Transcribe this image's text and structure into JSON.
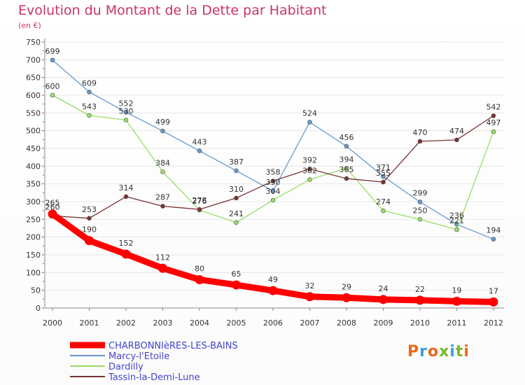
{
  "title": "Evolution du Montant de la Dette par Habitant",
  "subtitle": "(en €)",
  "logo": {
    "text": "Proxiti",
    "colors": [
      "#e86a1c",
      "#3aa0d8",
      "#e86a1c",
      "#7ab929",
      "#3aa0d8",
      "#7ab929",
      "#e86a1c"
    ]
  },
  "chart_data": {
    "type": "line",
    "x": [
      "2000",
      "2001",
      "2002",
      "2003",
      "2004",
      "2005",
      "2006",
      "2007",
      "2008",
      "2009",
      "2010",
      "2011",
      "2012"
    ],
    "ylim": [
      0,
      750
    ],
    "yticks": [
      0,
      50,
      100,
      150,
      200,
      250,
      300,
      350,
      400,
      450,
      500,
      550,
      600,
      650,
      700,
      750
    ],
    "grid": "horizontal",
    "legend": "bottom-left",
    "series": [
      {
        "name": "CHARBONNIèRES-LES-BAINS",
        "color": "#ff0000",
        "values": [
          265,
          190,
          152,
          112,
          80,
          65,
          49,
          32,
          29,
          24,
          22,
          19,
          17
        ]
      },
      {
        "name": "Marcy-l'Etoile",
        "color": "#6699cc",
        "values": [
          699,
          609,
          552,
          499,
          443,
          387,
          330,
          524,
          456,
          371,
          299,
          236,
          194
        ]
      },
      {
        "name": "Dardilly",
        "color": "#99dd66",
        "values": [
          600,
          543,
          530,
          384,
          276,
          241,
          304,
          362,
          394,
          274,
          250,
          221,
          497
        ]
      },
      {
        "name": "Tassin-la-Demi-Lune",
        "color": "#773333",
        "values": [
          260,
          253,
          314,
          287,
          278,
          310,
          358,
          392,
          365,
          355,
          470,
          474,
          542
        ]
      }
    ]
  }
}
